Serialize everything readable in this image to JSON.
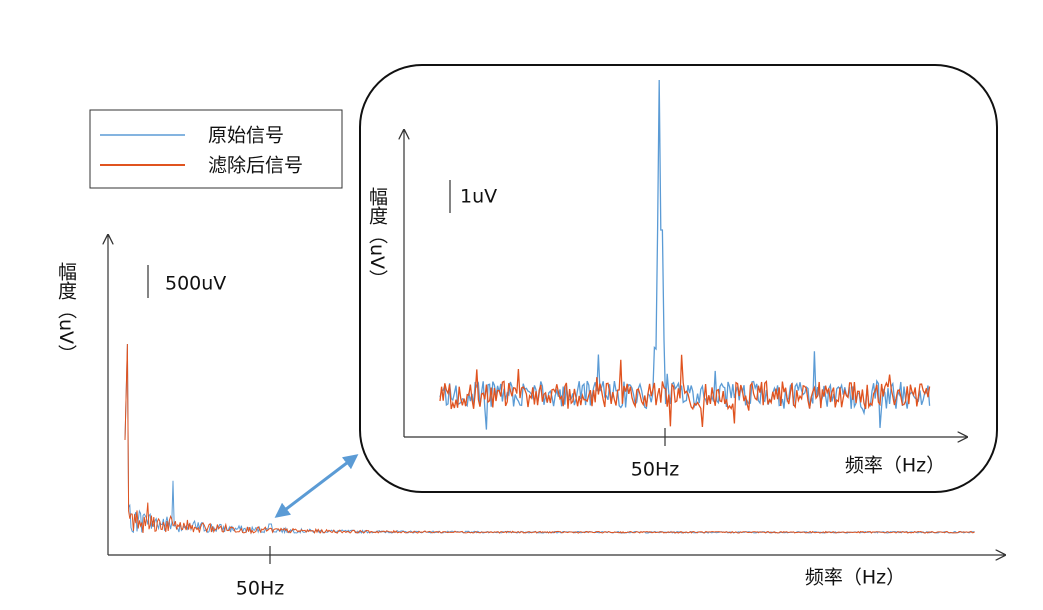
{
  "legend": {
    "items": [
      {
        "label": "原始信号",
        "color": "#5b9bd5"
      },
      {
        "label": "滤除后信号",
        "color": "#e0531f"
      }
    ]
  },
  "main": {
    "y_label": "幅度（uV）",
    "scale_bar": "500uV",
    "x_marker": "50Hz",
    "x_label": "频率（Hz）"
  },
  "inset": {
    "y_label": "幅度（uV）",
    "scale_bar": "1uV",
    "x_marker": "50Hz",
    "x_label": "频率（Hz）"
  }
}
